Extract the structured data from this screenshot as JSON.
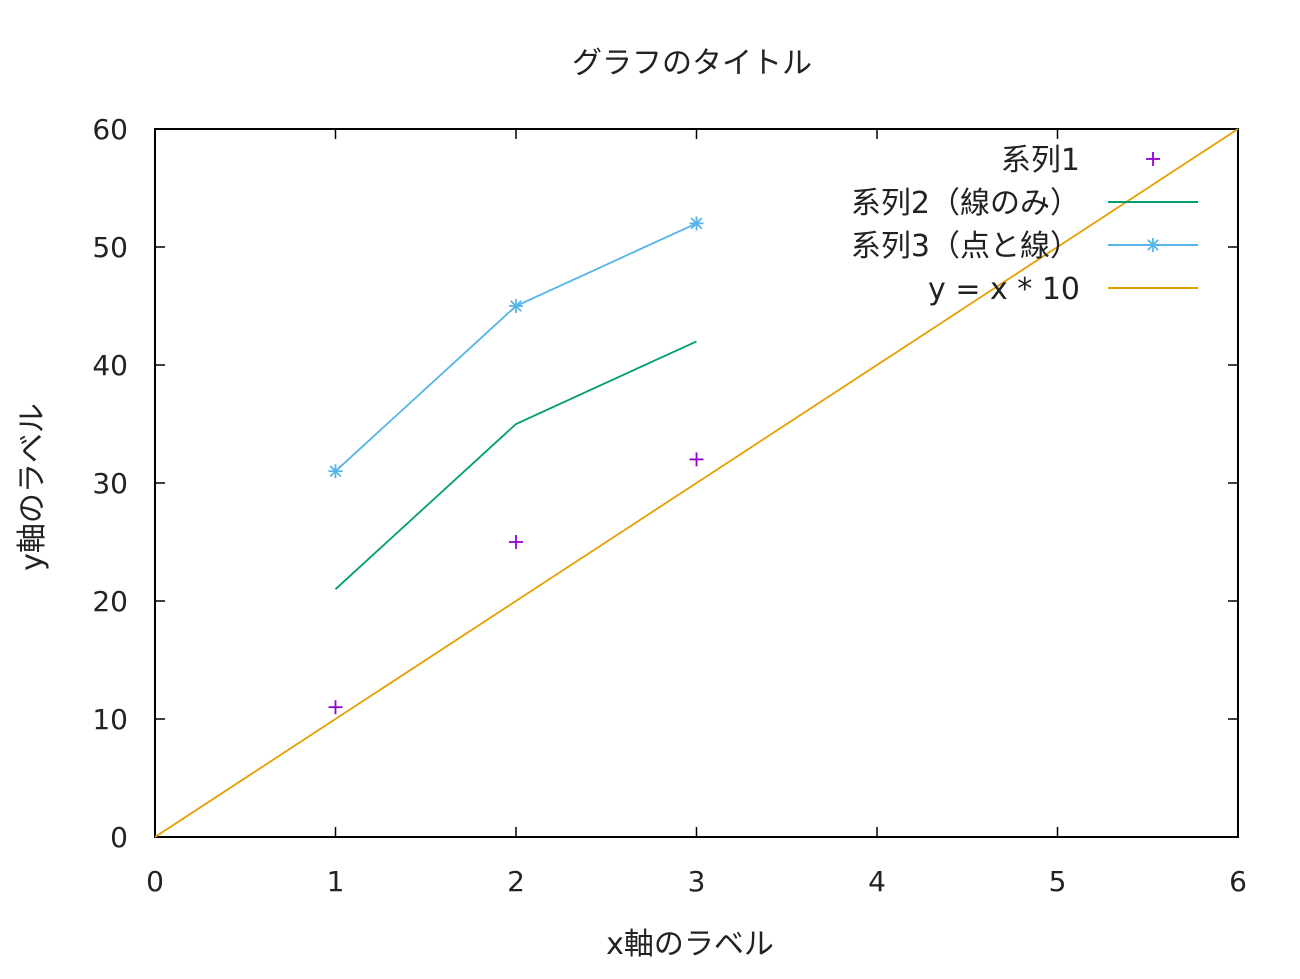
{
  "chart_data": {
    "type": "line",
    "title": "グラフのタイトル",
    "xlabel": "x軸のラベル",
    "ylabel": "y軸のラベル",
    "xlim": [
      0,
      6
    ],
    "ylim": [
      0,
      60
    ],
    "xticks": [
      "0",
      "1",
      "2",
      "3",
      "4",
      "5",
      "6"
    ],
    "yticks": [
      "0",
      "10",
      "20",
      "30",
      "40",
      "50",
      "60"
    ],
    "grid": false,
    "legend_position": "top-right",
    "series": [
      {
        "name": "系列1",
        "style": "points",
        "marker": "plus",
        "color": "#9400d3",
        "x": [
          1,
          2,
          3
        ],
        "y": [
          11,
          25,
          32
        ]
      },
      {
        "name": "系列2（線のみ）",
        "style": "lines",
        "color": "#009e73",
        "x": [
          1,
          2,
          3
        ],
        "y": [
          21,
          35,
          42
        ]
      },
      {
        "name": "系列3（点と線）",
        "style": "linespoints",
        "marker": "star",
        "color": "#56b4e9",
        "x": [
          1,
          2,
          3
        ],
        "y": [
          31,
          45,
          52
        ]
      },
      {
        "name": "y = x * 10",
        "style": "lines",
        "color": "#e69f00",
        "x": [
          0,
          6
        ],
        "y": [
          0,
          60
        ]
      }
    ]
  }
}
